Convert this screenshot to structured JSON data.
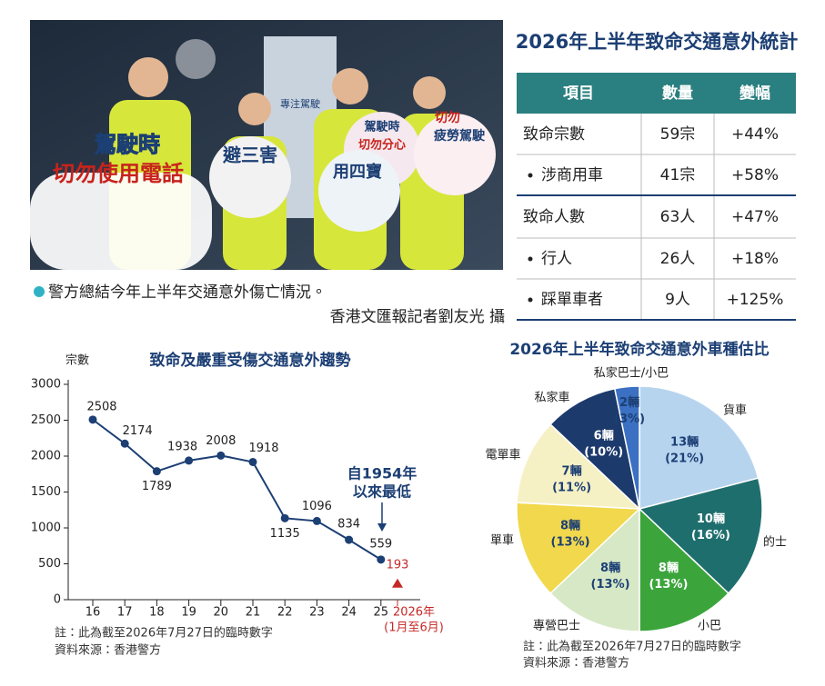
{
  "photo": {
    "signs": [
      "駕駛時",
      "切勿使用電話",
      "避三害",
      "駕駛時",
      "切勿分心",
      "用四寶",
      "切勿",
      "疲勞駕駛"
    ],
    "wall_text": "專注駕駛",
    "caption": "警方總結今年上半年交通意外傷亡情況。",
    "credit": "香港文匯報記者劉友光 攝"
  },
  "table": {
    "title": "2026年上半年致命交通意外統計",
    "header": [
      "項目",
      "數量",
      "變幅"
    ],
    "rows": [
      [
        "致命宗數",
        "59宗",
        "+44%"
      ],
      [
        "涉商用車",
        "41宗",
        "+58%"
      ],
      [
        "致命人數",
        "63人",
        "+47%"
      ],
      [
        "行人",
        "26人",
        "+18%"
      ],
      [
        "踩單車者",
        "9人",
        "+125%"
      ]
    ]
  },
  "chart_data": [
    {
      "type": "line",
      "title": "致命及嚴重受傷交通意外趨勢",
      "y_label": "宗數",
      "categories": [
        "16",
        "17",
        "18",
        "19",
        "20",
        "21",
        "22",
        "23",
        "24",
        "25",
        "2026年"
      ],
      "category_note": "(1月至6月)",
      "series": [
        {
          "values": [
            2508,
            2174,
            1789,
            1938,
            2008,
            1918,
            1135,
            1096,
            834,
            559,
            null
          ],
          "color": "#1c3f74"
        },
        {
          "values": [
            null,
            null,
            null,
            null,
            null,
            null,
            null,
            null,
            null,
            null,
            193
          ],
          "color": "#c62828"
        }
      ],
      "ylim": [
        0,
        3000
      ],
      "yticks": [
        0,
        500,
        1000,
        1500,
        2000,
        2500,
        3000
      ],
      "annotation": [
        "自1954年",
        "以來最低"
      ],
      "notes": [
        "註：此為截至2026年7月27日的臨時數字",
        "資料來源：香港警方"
      ]
    },
    {
      "type": "pie",
      "title": "2026年上半年致命交通意外車種估比",
      "categories": [
        "貨車",
        "的士",
        "小巴",
        "專營巴士",
        "單車",
        "電單車",
        "私家車",
        "私家巴士/小巴"
      ],
      "values": [
        13,
        10,
        8,
        8,
        8,
        7,
        6,
        2
      ],
      "value_labels": [
        "13輛",
        "10輛",
        "8輛",
        "8輛",
        "8輛",
        "7輛",
        "6輛",
        "2輛"
      ],
      "shares": [
        21,
        16,
        13,
        13,
        13,
        11,
        10,
        3
      ],
      "share_labels": [
        "(21%)",
        "(16%)",
        "(13%)",
        "(13%)",
        "(13%)",
        "(11%)",
        "(10%)",
        "(3%)"
      ],
      "colors": [
        "#b7d4ef",
        "#1f6e6e",
        "#3ba53b",
        "#d6e8c6",
        "#f1d84c",
        "#f6f1c4",
        "#1c3a6c",
        "#3b70c2"
      ],
      "notes": [
        "註：此為截至2026年7月27日的臨時數字",
        "資料來源：香港警方"
      ]
    }
  ]
}
